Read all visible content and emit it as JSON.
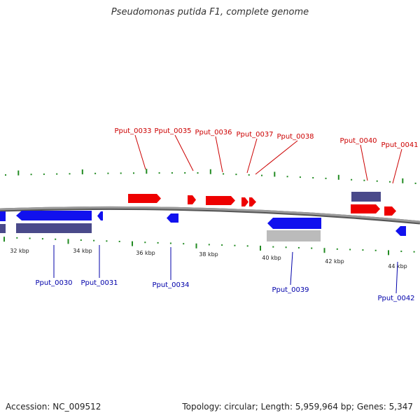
{
  "title": "Pseudomonas putida F1, complete genome",
  "footer": {
    "accession": "Accession: NC_009512",
    "summary": "Topology: circular; Length: 5,959,964 bp; Genes: 5,347"
  },
  "colors": {
    "forward_gene": "#ee0000",
    "reverse_gene": "#1111ee",
    "cds_block": "#4a4a8a",
    "pseudo_block": "#bbbbbb",
    "tick": "#228b22",
    "backbone": "#808080",
    "top_label": "#cc0000",
    "bottom_label": "#0000aa"
  },
  "scale_labels": [
    "32 kbp",
    "34 kbp",
    "36 kbp",
    "38 kbp",
    "40 kbp",
    "42 kbp",
    "44 kbp"
  ],
  "top_genes": [
    "Pput_0033",
    "Pput_0035",
    "Pput_0036",
    "Pput_0037",
    "Pput_0038",
    "Pput_0040",
    "Pput_0041"
  ],
  "bottom_genes": [
    "Pput_0030",
    "Pput_0031",
    "Pput_0034",
    "Pput_0039",
    "Pput_0042"
  ]
}
